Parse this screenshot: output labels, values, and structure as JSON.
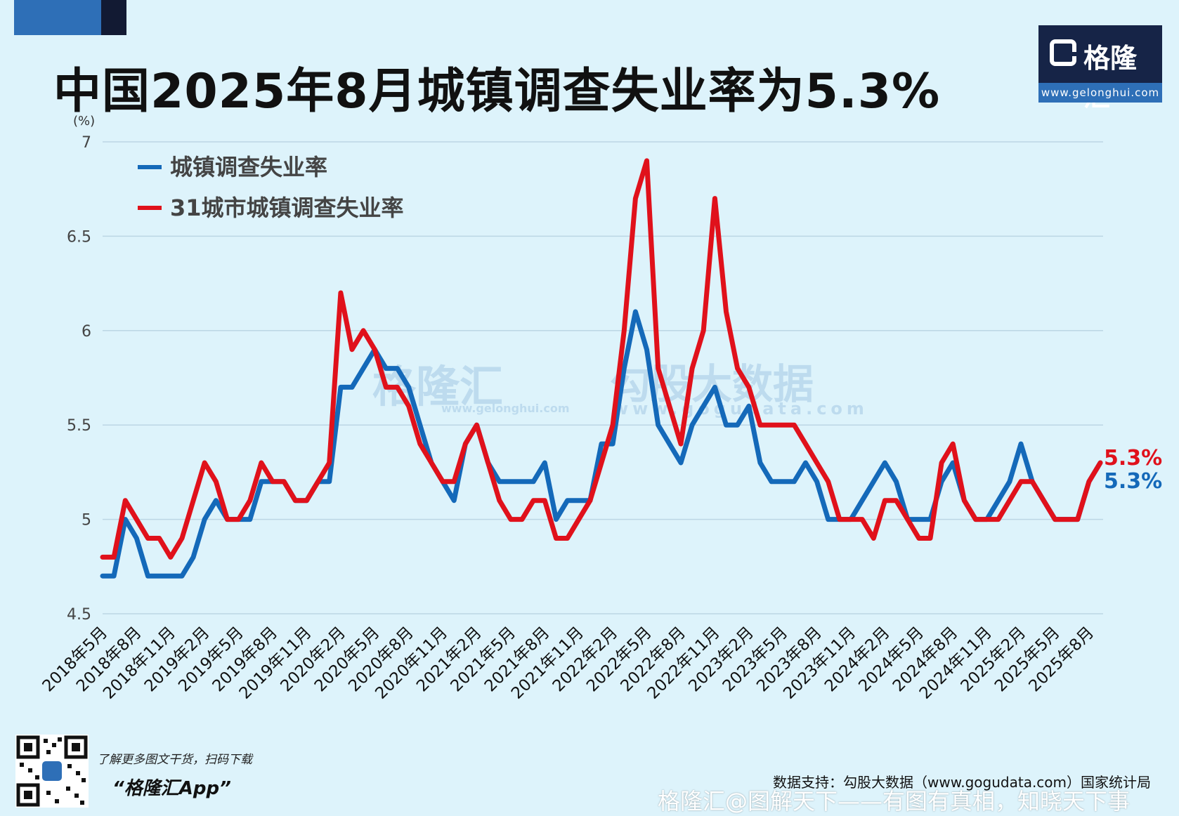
{
  "title": "中国2025年8月城镇调查失业率为5.3%",
  "logo": {
    "brand": "格隆汇",
    "url": "www.gelonghui.com",
    "icon": "gelonghui-logo-icon"
  },
  "watermark": {
    "left_brand": "格隆汇",
    "left_url": "www.gelonghui.com",
    "right_brand": "勾股大数据",
    "right_url": "www.gogudata.com"
  },
  "promo": {
    "line": "了解更多图文干货，扫码下载",
    "app": "“格隆汇App”",
    "icon": "qr-code-icon"
  },
  "source": "数据支持：勾股大数据（www.gogudata.com）国家统计局",
  "footer_watermark": "格隆汇@图解天下——有图有真相，知晓天下事",
  "colors": {
    "blue": "#1469b9",
    "red": "#e0111b",
    "grid": "#bcd6e4",
    "background": "#ddf3fb"
  },
  "chart_data": {
    "type": "line",
    "unit_label": "(%)",
    "ylim": [
      4.5,
      7
    ],
    "yticks": [
      "4.5",
      "5",
      "5.5",
      "6",
      "6.5",
      "7"
    ],
    "x_tick_labels": [
      "2018年5月",
      "2018年8月",
      "2018年11月",
      "2019年2月",
      "2019年5月",
      "2019年8月",
      "2019年11月",
      "2020年2月",
      "2020年5月",
      "2020年8月",
      "2020年11月",
      "2021年2月",
      "2021年5月",
      "2021年8月",
      "2021年11月",
      "2022年2月",
      "2022年5月",
      "2022年8月",
      "2022年11月",
      "2023年2月",
      "2023年5月",
      "2023年8月",
      "2023年11月",
      "2024年2月",
      "2024年5月",
      "2024年8月",
      "2024年11月",
      "2025年2月",
      "2025年5月",
      "2025年8月"
    ],
    "grid": true,
    "legend_position": "top-left",
    "series": [
      {
        "name": "城镇调查失业率",
        "color": "#1469b9",
        "end_label": "5.3%",
        "values": [
          4.7,
          4.7,
          5.0,
          4.9,
          4.7,
          4.7,
          4.7,
          4.7,
          4.8,
          5.0,
          5.1,
          5.0,
          5.0,
          5.0,
          5.2,
          5.2,
          5.2,
          5.1,
          5.1,
          5.2,
          5.2,
          5.7,
          5.7,
          5.8,
          5.9,
          5.8,
          5.8,
          5.7,
          5.5,
          5.3,
          5.2,
          5.1,
          5.4,
          5.5,
          5.3,
          5.2,
          5.2,
          5.2,
          5.2,
          5.3,
          5.0,
          5.1,
          5.1,
          5.1,
          5.4,
          5.4,
          5.8,
          6.1,
          5.9,
          5.5,
          5.4,
          5.3,
          5.5,
          5.6,
          5.7,
          5.5,
          5.5,
          5.6,
          5.3,
          5.2,
          5.2,
          5.2,
          5.3,
          5.2,
          5.0,
          5.0,
          5.0,
          5.1,
          5.2,
          5.3,
          5.2,
          5.0,
          5.0,
          5.0,
          5.2,
          5.3,
          5.1,
          5.0,
          5.0,
          5.1,
          5.2,
          5.4,
          5.2,
          5.1,
          5.0,
          5.0,
          5.0,
          5.2,
          5.3
        ]
      },
      {
        "name": "31城市城镇调查失业率",
        "color": "#e0111b",
        "end_label": "5.3%",
        "values": [
          4.8,
          4.8,
          5.1,
          5.0,
          4.9,
          4.9,
          4.8,
          4.9,
          5.1,
          5.3,
          5.2,
          5.0,
          5.0,
          5.1,
          5.3,
          5.2,
          5.2,
          5.1,
          5.1,
          5.2,
          5.3,
          6.2,
          5.9,
          6.0,
          5.9,
          5.7,
          5.7,
          5.6,
          5.4,
          5.3,
          5.2,
          5.2,
          5.4,
          5.5,
          5.3,
          5.1,
          5.0,
          5.0,
          5.1,
          5.1,
          4.9,
          4.9,
          5.0,
          5.1,
          5.3,
          5.5,
          6.0,
          6.7,
          6.9,
          5.8,
          5.6,
          5.4,
          5.8,
          6.0,
          6.7,
          6.1,
          5.8,
          5.7,
          5.5,
          5.5,
          5.5,
          5.5,
          5.4,
          5.3,
          5.2,
          5.0,
          5.0,
          5.0,
          4.9,
          5.1,
          5.1,
          5.0,
          4.9,
          4.9,
          5.3,
          5.4,
          5.1,
          5.0,
          5.0,
          5.0,
          5.1,
          5.2,
          5.2,
          5.1,
          5.0,
          5.0,
          5.0,
          5.2,
          5.3
        ]
      }
    ]
  }
}
